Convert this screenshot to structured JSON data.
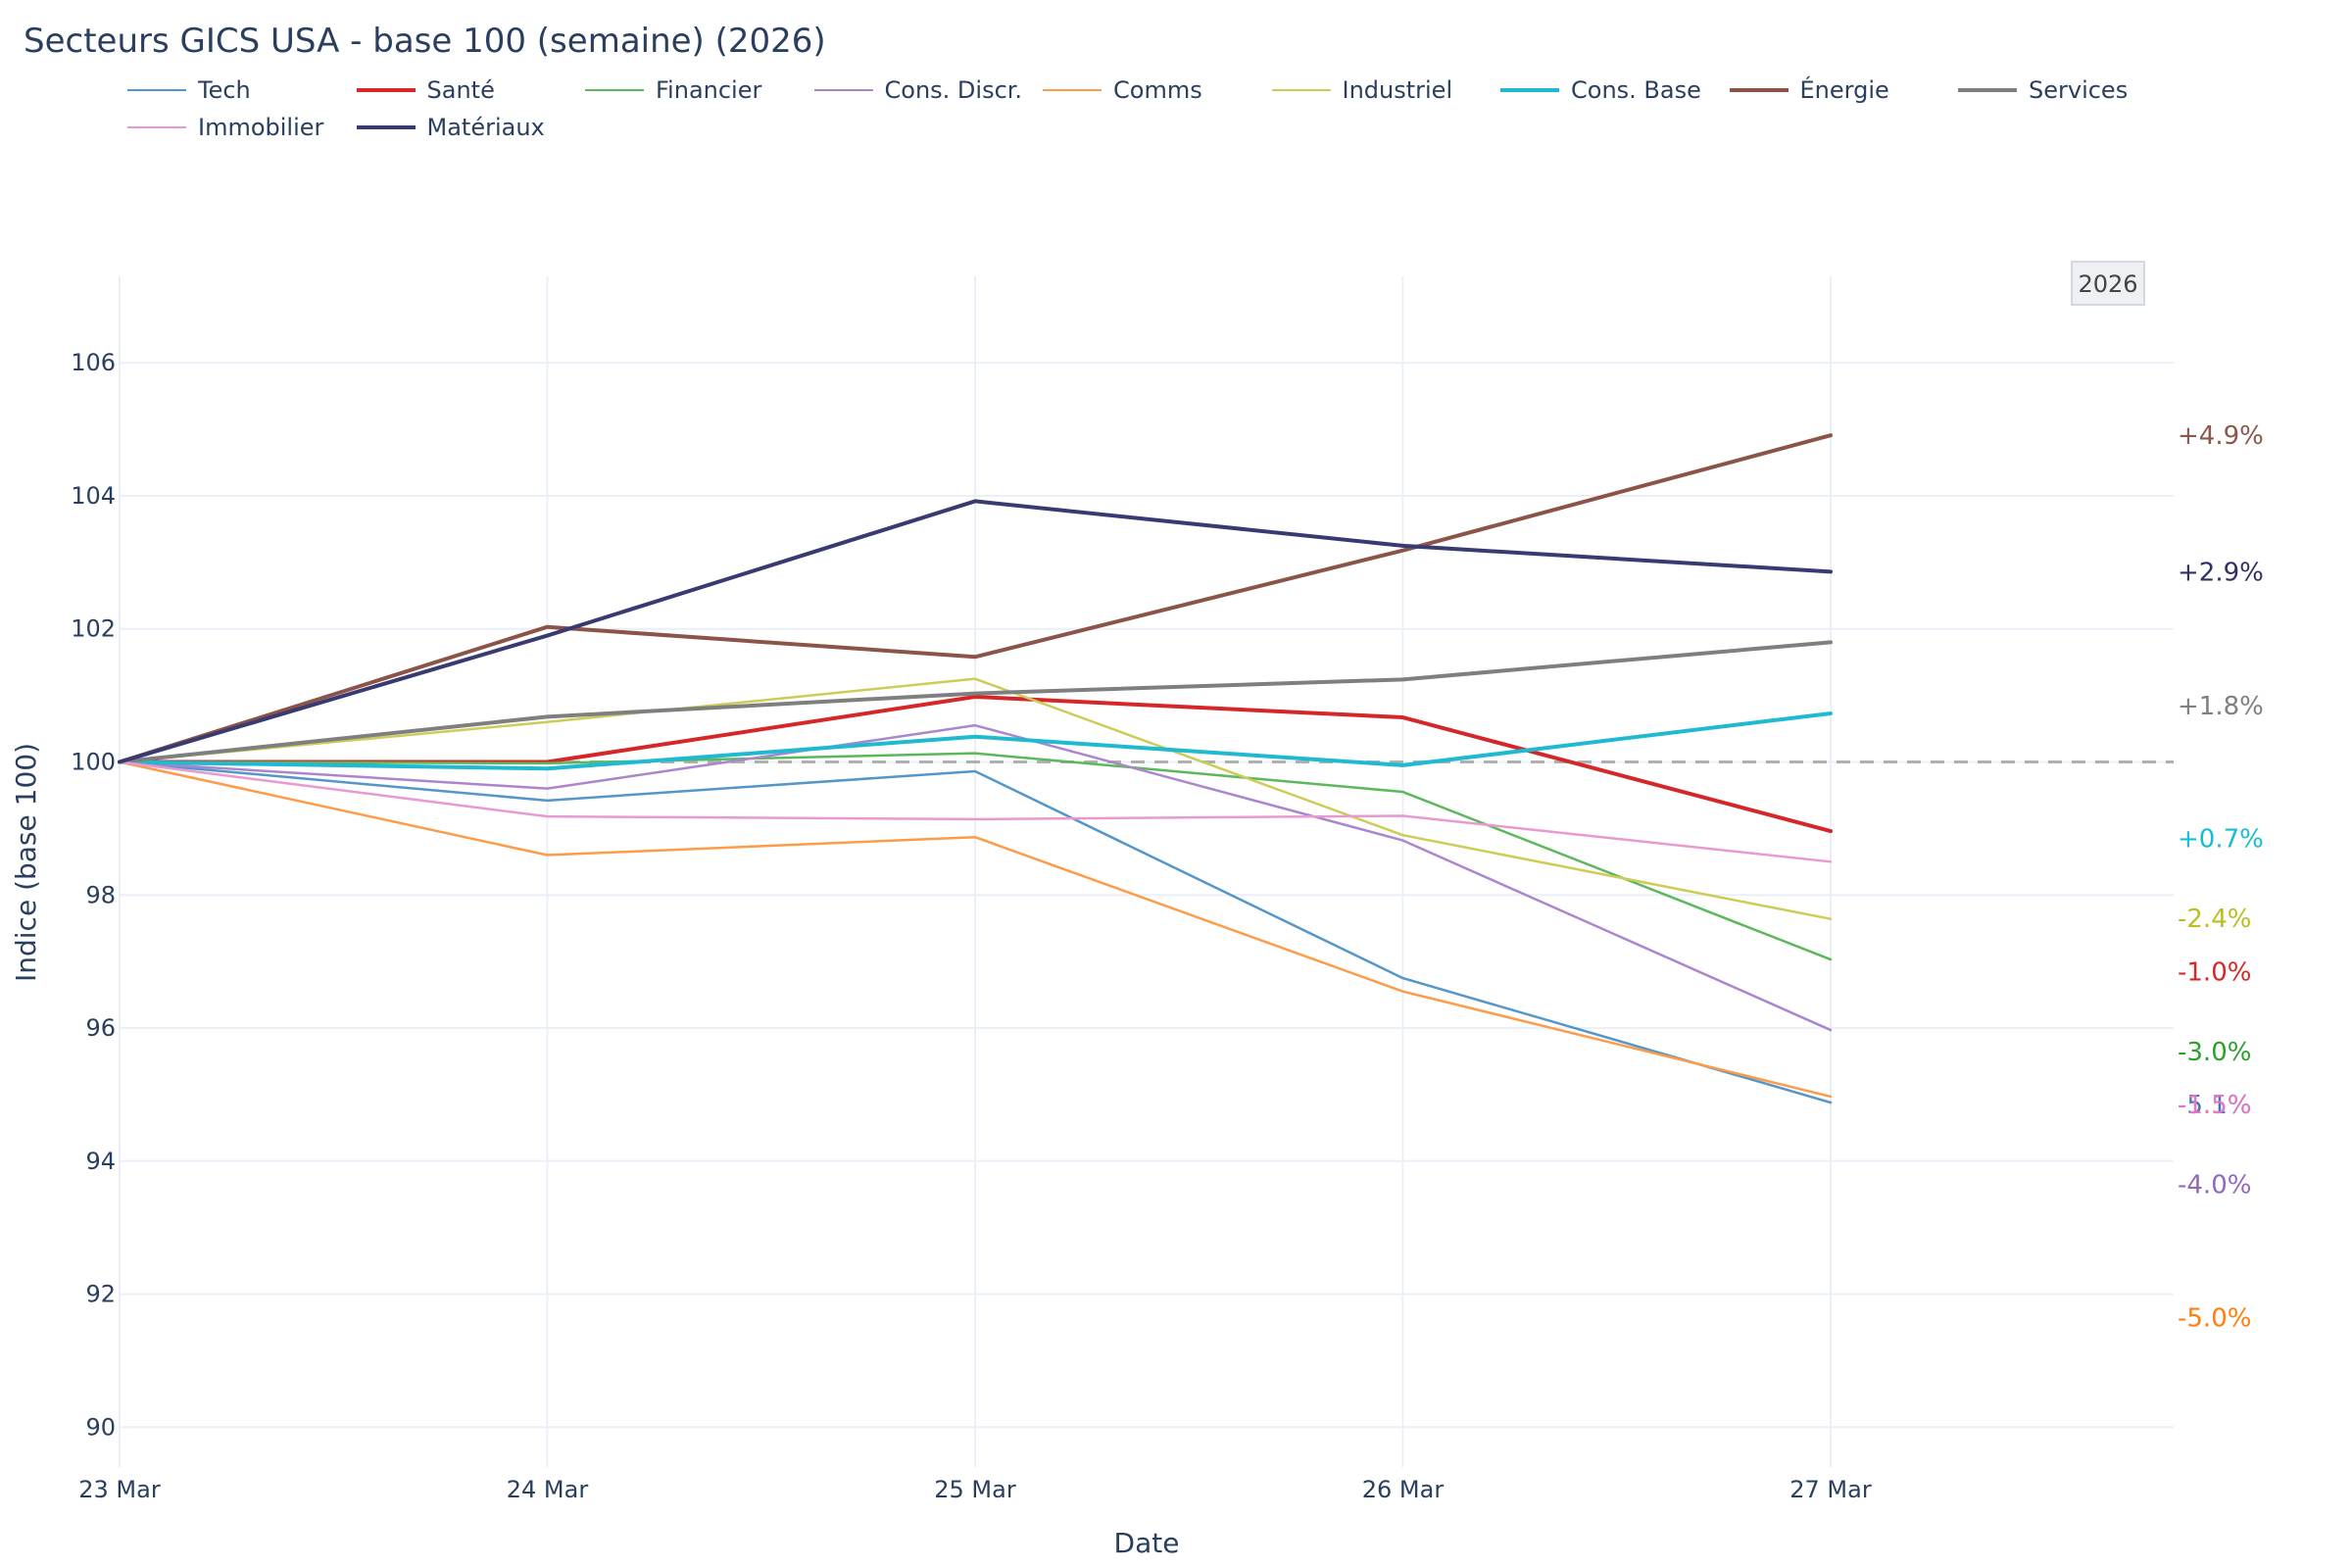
{
  "chart_data": {
    "type": "line",
    "title": "Secteurs GICS USA - base 100 (semaine) (2026)",
    "xlabel": "Date",
    "ylabel": "Indice (base 100)",
    "categories": [
      "23 Mar",
      "24 Mar",
      "25 Mar",
      "26 Mar",
      "27 Mar"
    ],
    "ylim": [
      89.4,
      107.3
    ],
    "yticks": [
      90,
      92,
      94,
      96,
      98,
      100,
      102,
      104,
      106
    ],
    "baseline": 100,
    "badge": "2026",
    "series": [
      {
        "name": "Tech",
        "color": "#5496c8",
        "width": 2.5,
        "values": [
          100,
          99.42,
          99.86,
          96.75,
          94.88
        ],
        "end_label": "-5.1%",
        "end_label_color": "#4a74b8",
        "end_label_value": 94.85
      },
      {
        "name": "Santé",
        "color": "#d62728",
        "width": 4,
        "values": [
          100,
          100.0,
          100.98,
          100.67,
          98.96
        ],
        "end_label": "-1.0%",
        "end_label_color": "#d62728",
        "end_label_value": 96.85
      },
      {
        "name": "Financier",
        "color": "#5cb85c",
        "width": 2.5,
        "values": [
          100,
          99.98,
          100.13,
          99.55,
          97.03
        ],
        "end_label": "-3.0%",
        "end_label_color": "#2ca02c",
        "end_label_value": 95.65
      },
      {
        "name": "Cons. Discr.",
        "color": "#ab86ce",
        "width": 2.5,
        "values": [
          100,
          99.6,
          100.55,
          98.82,
          95.97
        ],
        "end_label": "-4.0%",
        "end_label_color": "#9467bd",
        "end_label_value": 93.65
      },
      {
        "name": "Comms",
        "color": "#fd9b48",
        "width": 2.5,
        "values": [
          100,
          98.6,
          98.87,
          96.55,
          94.97
        ],
        "end_label": "-5.0%",
        "end_label_color": "#ff7f0e",
        "end_label_value": 91.65
      },
      {
        "name": "Industriel",
        "color": "#cccc57",
        "width": 2.5,
        "values": [
          100,
          100.6,
          101.25,
          98.9,
          97.64
        ],
        "end_label": "-2.4%",
        "end_label_color": "#bcbd22",
        "end_label_value": 97.65
      },
      {
        "name": "Cons. Base",
        "color": "#1fbad2",
        "width": 4,
        "values": [
          100,
          99.9,
          100.38,
          99.95,
          100.73
        ],
        "end_label": "+0.7%",
        "end_label_color": "#17becf",
        "end_label_value": 98.85
      },
      {
        "name": "Énergie",
        "color": "#8c5449",
        "width": 4,
        "values": [
          100,
          102.03,
          101.58,
          103.18,
          104.91
        ],
        "end_label": "+4.9%",
        "end_label_color": "#8c564b",
        "end_label_value": 104.91
      },
      {
        "name": "Services",
        "color": "#7f7f7f",
        "width": 4,
        "values": [
          100,
          100.68,
          101.03,
          101.24,
          101.8
        ],
        "end_label": "+1.8%",
        "end_label_color": "#7f7f7f",
        "end_label_value": 100.85
      },
      {
        "name": "Immobilier",
        "color": "#e89ad0",
        "width": 2.5,
        "values": [
          100,
          99.18,
          99.14,
          99.19,
          98.5
        ],
        "end_label": "-1.5%",
        "end_label_color": "#e377c2",
        "end_label_value": 94.85
      },
      {
        "name": "Matériaux",
        "color": "#383a72",
        "width": 4,
        "values": [
          100,
          101.9,
          103.92,
          103.25,
          102.86
        ],
        "end_label": "+2.9%",
        "end_label_color": "#2e3166",
        "end_label_value": 102.86
      }
    ]
  }
}
